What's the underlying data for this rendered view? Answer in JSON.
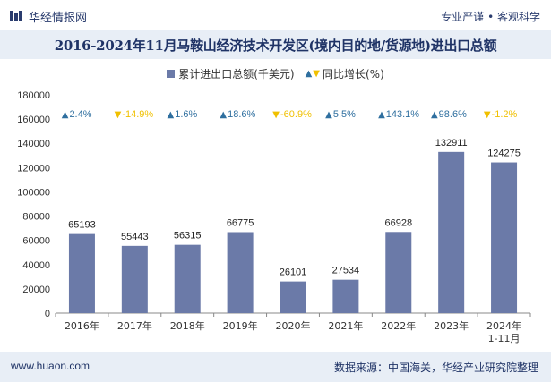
{
  "header": {
    "logo_text": "华经情报网",
    "slogan": "专业严谨 • 客观科学"
  },
  "title": "2016-2024年11月马鞍山经济技术开发区(境内目的地/货源地)进出口总额",
  "legend": {
    "bar_label": "累计进出口总额(千美元)",
    "line_label": "同比增长(%)"
  },
  "footer": {
    "website": "www.huaon.com",
    "source": "数据来源：中国海关，华经产业研究院整理"
  },
  "colors": {
    "bar": "#6b7aa8",
    "up": "#2f6f9f",
    "down": "#f0c000",
    "title_bg": "#e8eef6"
  },
  "chart_data": {
    "type": "bar",
    "categories": [
      "2016年",
      "2017年",
      "2018年",
      "2019年",
      "2020年",
      "2021年",
      "2022年",
      "2023年",
      "2024年\n1-11月"
    ],
    "series": [
      {
        "name": "累计进出口总额(千美元)",
        "values": [
          65193,
          55443,
          56315,
          66775,
          26101,
          27534,
          66928,
          132911,
          124275
        ]
      }
    ],
    "growth": [
      {
        "label": "2.4%",
        "dir": "up"
      },
      {
        "label": "-14.9%",
        "dir": "down"
      },
      {
        "label": "1.6%",
        "dir": "up"
      },
      {
        "label": "18.6%",
        "dir": "up"
      },
      {
        "label": "-60.9%",
        "dir": "down"
      },
      {
        "label": "5.5%",
        "dir": "up"
      },
      {
        "label": "143.1%",
        "dir": "up"
      },
      {
        "label": "98.6%",
        "dir": "up"
      },
      {
        "label": "-1.2%",
        "dir": "down"
      }
    ],
    "value_labels": [
      "65193",
      "55443",
      "56315",
      "66775",
      "26101",
      "27534",
      "66928",
      "132911",
      "124275"
    ],
    "y_ticks": [
      "0",
      "20000",
      "40000",
      "60000",
      "80000",
      "100000",
      "120000",
      "140000",
      "160000",
      "180000"
    ],
    "ylim": [
      0,
      180000
    ]
  }
}
